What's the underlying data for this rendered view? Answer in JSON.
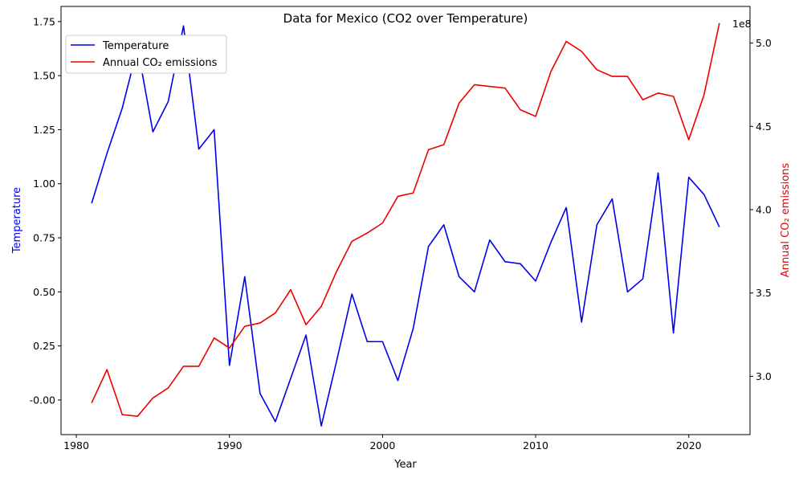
{
  "chart_data": {
    "type": "line",
    "title": "Data for Mexico (CO2 over Temperature)",
    "xlabel": "Year",
    "ylabel_left": "Temperature",
    "ylabel_right": "Annual CO₂ emissions",
    "right_axis_offset_label": "1e8",
    "xlim": [
      1979,
      2024
    ],
    "ylim_left": [
      -0.16,
      1.82
    ],
    "ylim_right": [
      265000000,
      522000000
    ],
    "x_ticks": [
      1980,
      1990,
      2000,
      2010,
      2020
    ],
    "y_ticks_left": [
      "-0.00",
      "0.25",
      "0.50",
      "0.75",
      "1.00",
      "1.25",
      "1.50",
      "1.75"
    ],
    "y_ticks_right": [
      "3.0",
      "3.5",
      "4.0",
      "4.5",
      "5.0"
    ],
    "grid": false,
    "legend_position": "upper-left",
    "x": [
      1981,
      1982,
      1983,
      1984,
      1985,
      1986,
      1987,
      1988,
      1989,
      1990,
      1991,
      1992,
      1993,
      1994,
      1995,
      1996,
      1997,
      1998,
      1999,
      2000,
      2001,
      2002,
      2003,
      2004,
      2005,
      2006,
      2007,
      2008,
      2009,
      2010,
      2011,
      2012,
      2013,
      2014,
      2015,
      2016,
      2017,
      2018,
      2019,
      2020,
      2021,
      2022
    ],
    "series": [
      {
        "name": "Temperature",
        "axis": "left",
        "color": "#0000ee",
        "values": [
          0.91,
          1.14,
          1.35,
          1.63,
          1.24,
          1.38,
          1.73,
          1.16,
          1.25,
          0.16,
          0.57,
          0.03,
          -0.1,
          0.1,
          0.3,
          -0.12,
          0.18,
          0.49,
          0.27,
          0.27,
          0.09,
          0.33,
          0.71,
          0.81,
          0.57,
          0.5,
          0.74,
          0.64,
          0.63,
          0.55,
          0.73,
          0.89,
          0.36,
          0.81,
          0.93,
          0.5,
          0.56,
          1.05,
          0.31,
          1.03,
          0.95,
          0.8
        ]
      },
      {
        "name": "Annual CO₂ emissions",
        "axis": "right",
        "color": "#ee0000",
        "values": [
          284000000,
          304000000,
          277000000,
          276000000,
          287000000,
          293000000,
          306000000,
          306000000,
          323000000,
          317000000,
          330000000,
          332000000,
          338000000,
          352000000,
          331000000,
          342000000,
          363000000,
          381000000,
          386000000,
          392000000,
          408000000,
          410000000,
          436000000,
          439000000,
          464000000,
          475000000,
          474000000,
          473000000,
          460000000,
          456000000,
          483000000,
          501000000,
          495000000,
          484000000,
          480000000,
          480000000,
          466000000,
          470000000,
          468000000,
          442000000,
          469000000,
          512000000
        ]
      }
    ]
  }
}
